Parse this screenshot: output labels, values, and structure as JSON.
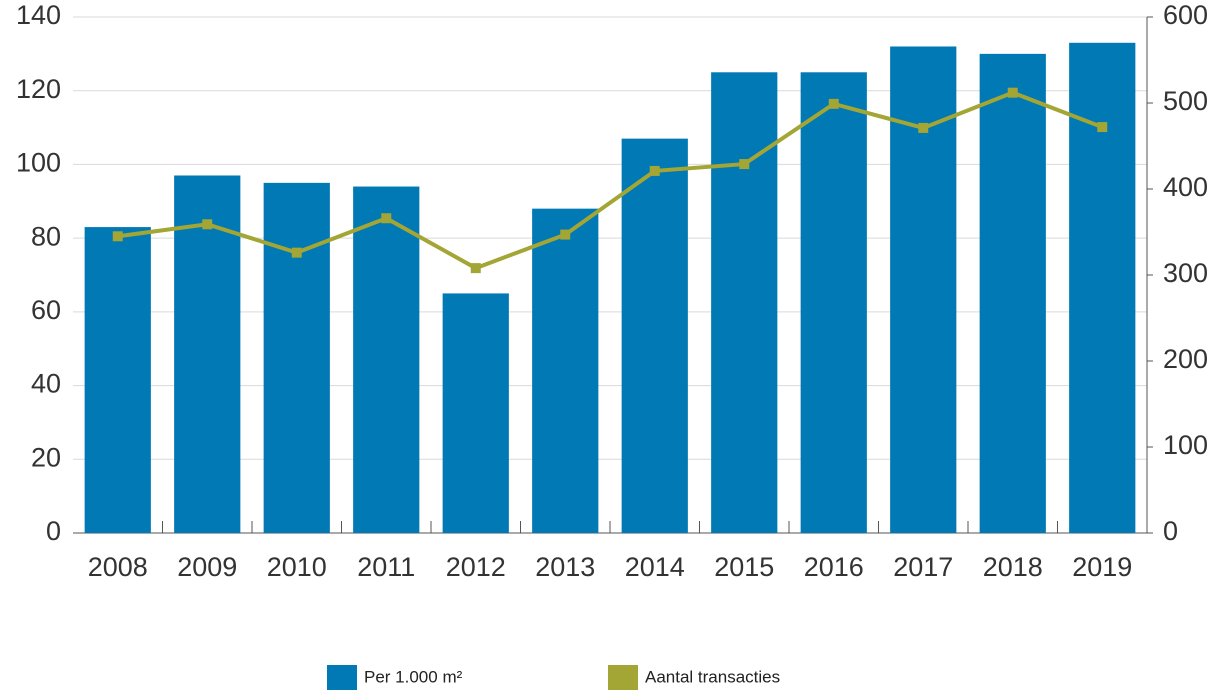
{
  "chart_data": {
    "type": "bar",
    "categories": [
      "2008",
      "2009",
      "2010",
      "2011",
      "2012",
      "2013",
      "2014",
      "2015",
      "2016",
      "2017",
      "2018",
      "2019"
    ],
    "series": [
      {
        "name": "Per 1.000 m²",
        "type": "bar",
        "color": "#0079b4",
        "values": [
          83,
          97,
          95,
          94,
          65,
          88,
          107,
          125,
          125,
          132,
          130,
          133
        ]
      },
      {
        "name": "Aantal transacties",
        "type": "line",
        "axis": "y2",
        "color": "#a3a535",
        "values": [
          345,
          359,
          326,
          366,
          308,
          347,
          421,
          429,
          499,
          471,
          512,
          472
        ]
      }
    ],
    "ylim": [
      0,
      140
    ],
    "yticks": [
      0,
      20,
      40,
      60,
      80,
      100,
      120,
      140
    ],
    "y2lim": [
      0,
      600
    ],
    "y2ticks": [
      0,
      100,
      200,
      300,
      400,
      500,
      600
    ],
    "grid": true,
    "legend": "bottom"
  }
}
